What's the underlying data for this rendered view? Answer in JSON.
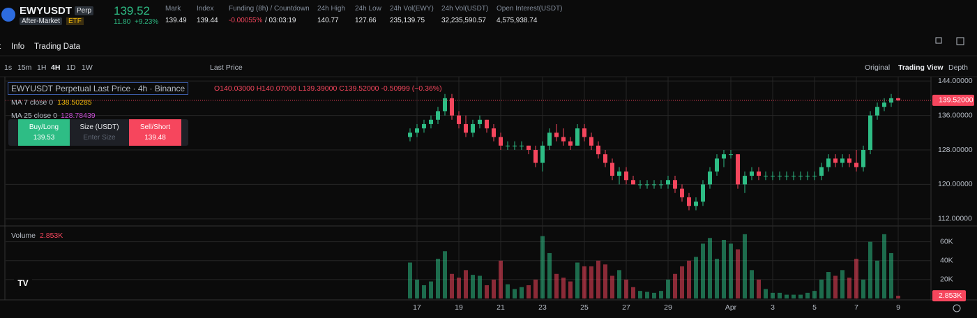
{
  "header": {
    "symbol": "EWYUSDT",
    "badge": "Perp",
    "session": "After-Market",
    "tag": "ETF",
    "price": "139.52",
    "change": "11.80",
    "change_pct": "+9.23%",
    "stats": [
      {
        "label": "Mark",
        "value": "139.49"
      },
      {
        "label": "Index",
        "value": "139.44"
      },
      {
        "label": "Funding (8h) / Countdown",
        "value": "-0.00055%",
        "extra": "/ 03:03:19"
      },
      {
        "label": "24h High",
        "value": "140.77"
      },
      {
        "label": "24h Low",
        "value": "127.66"
      },
      {
        "label": "24h Vol(EWY)",
        "value": "235,139.75"
      },
      {
        "label": "24h Vol(USDT)",
        "value": "32,235,590.57"
      },
      {
        "label": "Open Interest(USDT)",
        "value": "4,575,938.74"
      }
    ]
  },
  "tabs": [
    "t",
    "Info",
    "Trading Data"
  ],
  "toolbar": {
    "intervals": [
      "1s",
      "15m",
      "1H",
      "4H",
      "1D",
      "1W"
    ],
    "price_type": "Last Price",
    "views": [
      "Original",
      "Trading View",
      "Depth"
    ]
  },
  "order_panel": {
    "buy": "Buy/Long",
    "buy_price": "139.53",
    "size": "Size (USDT)",
    "size_placeholder": "Enter Size",
    "sell": "Sell/Short",
    "sell_price": "139.48"
  },
  "chart_data": {
    "type": "candlestick",
    "title": "EWYUSDT Perpetual Last Price · 4h · Binance",
    "ohlc_text": "O140.03000 H140.07000 L139.39000 C139.52000 -0.50999 (−0.36%)",
    "ma7": {
      "label": "MA 7 close 0",
      "value": "138.50285"
    },
    "ma25": {
      "label": "MA 25 close 0",
      "value": "128.78439"
    },
    "up_color": "#2ebd85",
    "down_color": "#f6465d",
    "grid": true,
    "xlim": [
      -1,
      71
    ],
    "xticks": [
      {
        "value": 1,
        "label": "17"
      },
      {
        "value": 7,
        "label": "19"
      },
      {
        "value": 13,
        "label": "21"
      },
      {
        "value": 19,
        "label": "23"
      },
      {
        "value": 25,
        "label": "25"
      },
      {
        "value": 31,
        "label": "27"
      },
      {
        "value": 37,
        "label": "29"
      },
      {
        "value": 46,
        "label": "Apr"
      },
      {
        "value": 52,
        "label": "3"
      },
      {
        "value": 58,
        "label": "5"
      },
      {
        "value": 64,
        "label": "7"
      },
      {
        "value": 70,
        "label": "9"
      }
    ],
    "ylim": [
      111,
      145
    ],
    "yticks": [
      {
        "value": 144,
        "label": "144.00000"
      },
      {
        "value": 136,
        "label": "136.00000"
      },
      {
        "value": 128,
        "label": "128.00000"
      },
      {
        "value": 120,
        "label": "120.00000"
      },
      {
        "value": 112,
        "label": "112.00000"
      }
    ],
    "last_price": {
      "value": 139.52,
      "label": "139.52000"
    },
    "ohlc": [
      [
        131,
        133,
        130,
        132
      ],
      [
        132,
        134,
        131,
        133
      ],
      [
        133,
        135,
        132,
        134
      ],
      [
        134,
        136,
        133,
        135
      ],
      [
        135,
        138,
        134,
        137
      ],
      [
        137,
        141,
        136,
        140
      ],
      [
        140,
        141,
        135,
        136
      ],
      [
        136,
        137,
        133,
        134
      ],
      [
        134,
        136,
        131,
        132
      ],
      [
        132,
        135,
        131,
        134
      ],
      [
        134,
        136,
        133,
        135
      ],
      [
        135,
        135,
        132,
        133
      ],
      [
        133,
        134,
        130,
        131
      ],
      [
        131,
        132,
        128,
        129
      ],
      [
        129,
        130,
        128,
        129
      ],
      [
        129,
        130,
        128,
        129
      ],
      [
        129,
        130,
        128,
        129
      ],
      [
        129,
        129,
        127,
        128
      ],
      [
        128,
        129,
        124,
        125
      ],
      [
        125,
        130,
        123,
        129
      ],
      [
        129,
        133,
        128,
        132
      ],
      [
        132,
        134,
        130,
        131
      ],
      [
        131,
        133,
        129,
        130
      ],
      [
        130,
        131,
        128,
        129
      ],
      [
        129,
        134,
        129,
        133
      ],
      [
        133,
        134,
        130,
        131
      ],
      [
        131,
        132,
        128,
        129
      ],
      [
        129,
        130,
        126,
        127
      ],
      [
        127,
        128,
        124,
        125
      ],
      [
        125,
        126,
        121,
        122
      ],
      [
        122,
        124,
        120,
        123
      ],
      [
        123,
        124,
        120,
        121
      ],
      [
        121,
        122,
        120,
        120
      ],
      [
        120,
        121,
        119,
        120
      ],
      [
        120,
        121,
        119,
        120
      ],
      [
        120,
        121,
        119,
        120
      ],
      [
        120,
        121,
        119,
        120
      ],
      [
        120,
        122,
        119,
        121
      ],
      [
        121,
        122,
        118,
        119
      ],
      [
        119,
        120,
        116,
        117
      ],
      [
        117,
        118,
        114,
        115
      ],
      [
        115,
        117,
        114,
        116
      ],
      [
        116,
        121,
        115,
        120
      ],
      [
        120,
        124,
        119,
        123
      ],
      [
        123,
        127,
        122,
        126
      ],
      [
        126,
        128,
        124,
        127
      ],
      [
        127,
        128,
        126,
        127
      ],
      [
        127,
        127,
        119,
        120
      ],
      [
        120,
        123,
        118,
        122
      ],
      [
        122,
        124,
        121,
        123
      ],
      [
        123,
        124,
        121,
        122
      ],
      [
        122,
        123,
        121,
        122
      ],
      [
        122,
        123,
        121,
        122
      ],
      [
        122,
        123,
        121,
        122
      ],
      [
        122,
        123,
        121,
        122
      ],
      [
        122,
        123,
        121,
        122
      ],
      [
        122,
        123,
        121,
        122
      ],
      [
        122,
        123,
        121,
        122
      ],
      [
        122,
        123,
        121,
        122
      ],
      [
        122,
        125,
        121,
        124
      ],
      [
        124,
        127,
        123,
        126
      ],
      [
        126,
        127,
        124,
        125
      ],
      [
        125,
        127,
        124,
        126
      ],
      [
        126,
        127,
        124,
        125
      ],
      [
        125,
        128,
        123,
        124
      ],
      [
        124,
        129,
        123,
        128
      ],
      [
        128,
        137,
        127,
        136
      ],
      [
        136,
        139,
        135,
        138
      ],
      [
        138,
        140,
        137,
        139
      ],
      [
        139,
        141,
        138,
        140
      ],
      [
        140,
        140.07,
        139.39,
        139.52
      ]
    ],
    "volume_title": "Volume",
    "volume_label": "2.853K",
    "volume": [
      38000,
      20000,
      14000,
      18000,
      42000,
      50000,
      26000,
      22000,
      30000,
      25000,
      24000,
      14000,
      20000,
      40000,
      15000,
      10000,
      12000,
      14000,
      20000,
      66000,
      48000,
      26000,
      22000,
      18000,
      38000,
      34000,
      34000,
      40000,
      36000,
      24000,
      30000,
      20000,
      12000,
      8000,
      7000,
      6000,
      8000,
      20000,
      26000,
      34000,
      40000,
      44000,
      58000,
      64000,
      42000,
      62000,
      58000,
      52000,
      68000,
      30000,
      20000,
      10000,
      6000,
      6000,
      4000,
      4000,
      4000,
      6000,
      8000,
      20000,
      28000,
      24000,
      30000,
      22000,
      42000,
      20000,
      60000,
      40000,
      68000,
      48000,
      2853
    ],
    "vlim": [
      0,
      76000
    ],
    "vticks": [
      {
        "value": 60000,
        "label": "60K"
      },
      {
        "value": 40000,
        "label": "40K"
      },
      {
        "value": 20000,
        "label": "20K"
      }
    ]
  }
}
